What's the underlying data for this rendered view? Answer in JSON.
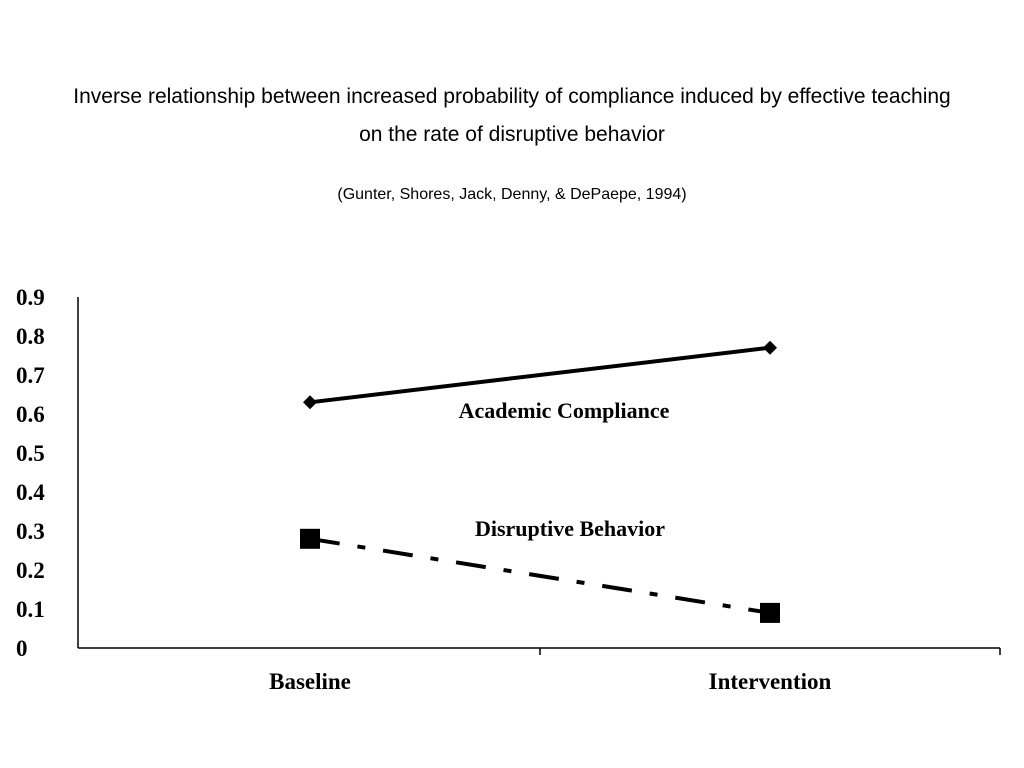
{
  "title_lines": [
    "Inverse relationship between increased probability of compliance induced by effective teaching",
    "on the rate of disruptive behavior"
  ],
  "subtitle": "(Gunter, Shores, Jack, Denny, & DePaepe, 1994)",
  "chart_data": {
    "type": "line",
    "title": "",
    "xlabel": "",
    "ylabel": "",
    "categories": [
      "Baseline",
      "Intervention"
    ],
    "yticks": [
      "0",
      "0.1",
      "0.2",
      "0.3",
      "0.4",
      "0.5",
      "0.6",
      "0.7",
      "0.8",
      "0.9"
    ],
    "ylim": [
      0,
      0.9
    ],
    "grid": false,
    "legend": "none",
    "series": [
      {
        "name": "Academic Compliance",
        "values": [
          0.63,
          0.77
        ],
        "marker": "diamond",
        "line_style": "solid",
        "color": "#000000"
      },
      {
        "name": "Disruptive Behavior",
        "values": [
          0.28,
          0.09
        ],
        "marker": "square",
        "line_style": "dash-dot",
        "color": "#000000"
      }
    ]
  }
}
